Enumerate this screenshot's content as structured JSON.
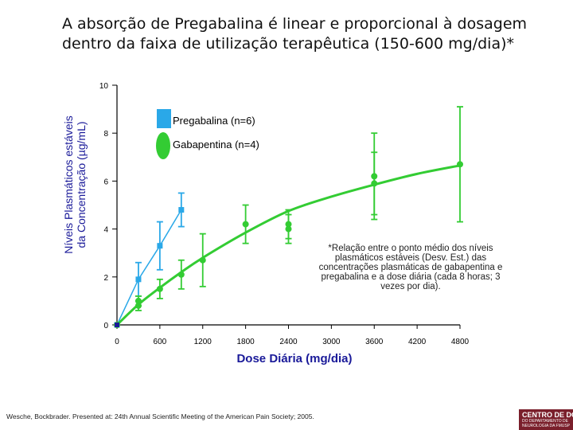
{
  "title_lines": [
    "A absorção de Pregabalina é linear e proporcional à dosagem",
    "dentro da faixa de utilização terapêutica (150-600 mg/dia)*"
  ],
  "note_lines": [
    "*Relação entre o ponto médio dos níveis",
    "plasmáticos estáveis (Desv. Est.) das",
    "concentrações plasmáticas de  gabapentina e",
    "pregabalina e a dose diária (cada 8 horas; 3",
    "vezes por dia)."
  ],
  "source": "Wesche, Bockbrader. Presented at: 24th Annual Scientific Meeting of the American Pain Society; 2005.",
  "logo": {
    "line1": "CENTRO DE DOR",
    "line2": "DO DEPARTAMENTO DE",
    "line3": "NEUROLOGIA DA FMUSP",
    "color": "#7a1f2b"
  },
  "chart_data": {
    "type": "line",
    "xlabel": "Dose Diária (mg/dia)",
    "ylabel_lines": [
      "Níveis Plasmáticos estáveis",
      "da Concentração (µg/mL)"
    ],
    "x_ticks": [
      0,
      600,
      1200,
      1800,
      2400,
      3000,
      3600,
      4200,
      4800
    ],
    "x_tick_labels": [
      "0",
      "600",
      "1200",
      "1800",
      "2400",
      "3000",
      "3600",
      "4200",
      "4800"
    ],
    "y_ticks": [
      0,
      2,
      4,
      6,
      8,
      10
    ],
    "y_tick_labels": [
      "0",
      "2",
      "4",
      "6",
      "8",
      "10"
    ],
    "xlim": [
      0,
      4800
    ],
    "ylim": [
      0,
      10
    ],
    "grid": false,
    "legend_position": "top-left",
    "series": [
      {
        "name": "Pregabalina (n=6)",
        "color": "#2aa8e8",
        "marker": "square",
        "fit": "linear",
        "points": [
          {
            "x": 0,
            "y": 0,
            "err": 0
          },
          {
            "x": 300,
            "y": 1.9,
            "err": 0.7
          },
          {
            "x": 600,
            "y": 3.3,
            "err": 1.0
          },
          {
            "x": 900,
            "y": 4.8,
            "err": 0.7
          }
        ]
      },
      {
        "name": "Gabapentina (n=4)",
        "color": "#33cc33",
        "marker": "circle",
        "fit": "curve",
        "points": [
          {
            "x": 0,
            "y": 0,
            "err": 0
          },
          {
            "x": 300,
            "y": 0.8,
            "err": 0.2
          },
          {
            "x": 300,
            "y": 1.0,
            "err": 0.2
          },
          {
            "x": 600,
            "y": 1.5,
            "err": 0.4
          },
          {
            "x": 900,
            "y": 2.1,
            "err": 0.6
          },
          {
            "x": 1200,
            "y": 2.7,
            "err": 1.1
          },
          {
            "x": 1800,
            "y": 4.2,
            "err": 0.8
          },
          {
            "x": 2400,
            "y": 4.0,
            "err": 0.6
          },
          {
            "x": 2400,
            "y": 4.2,
            "err": 0.6
          },
          {
            "x": 3600,
            "y": 6.2,
            "err": 1.8
          },
          {
            "x": 3600,
            "y": 5.9,
            "err": 1.3
          },
          {
            "x": 4800,
            "y": 6.7,
            "err": 2.4
          }
        ],
        "curve": [
          {
            "x": 0,
            "y": 0
          },
          {
            "x": 300,
            "y": 0.85
          },
          {
            "x": 600,
            "y": 1.55
          },
          {
            "x": 900,
            "y": 2.2
          },
          {
            "x": 1200,
            "y": 2.8
          },
          {
            "x": 1800,
            "y": 3.85
          },
          {
            "x": 2400,
            "y": 4.75
          },
          {
            "x": 3000,
            "y": 5.35
          },
          {
            "x": 3600,
            "y": 5.85
          },
          {
            "x": 4200,
            "y": 6.3
          },
          {
            "x": 4800,
            "y": 6.65
          }
        ]
      }
    ]
  }
}
